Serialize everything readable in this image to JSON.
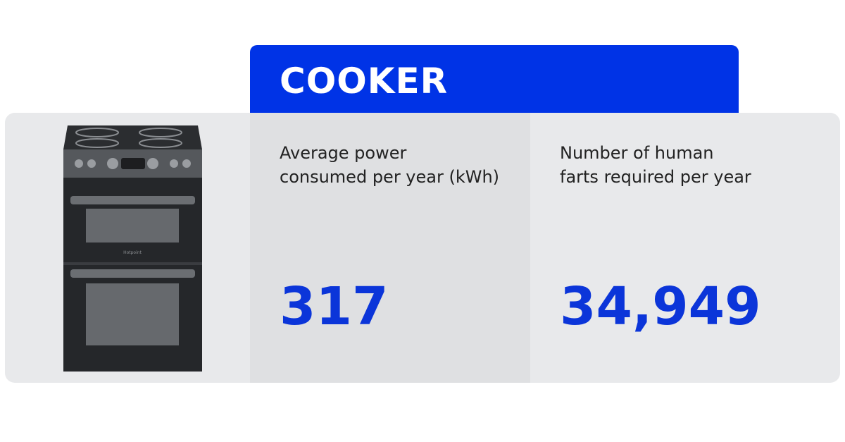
{
  "header": {
    "title": "COOKER"
  },
  "appliance": {
    "brand": "Hotpoint"
  },
  "stats": [
    {
      "label_lines": [
        "Average power",
        "consumed per year (kWh)"
      ],
      "value": "317"
    },
    {
      "label_lines": [
        "Number of human",
        "farts required per year"
      ],
      "value": "34,949"
    }
  ]
}
